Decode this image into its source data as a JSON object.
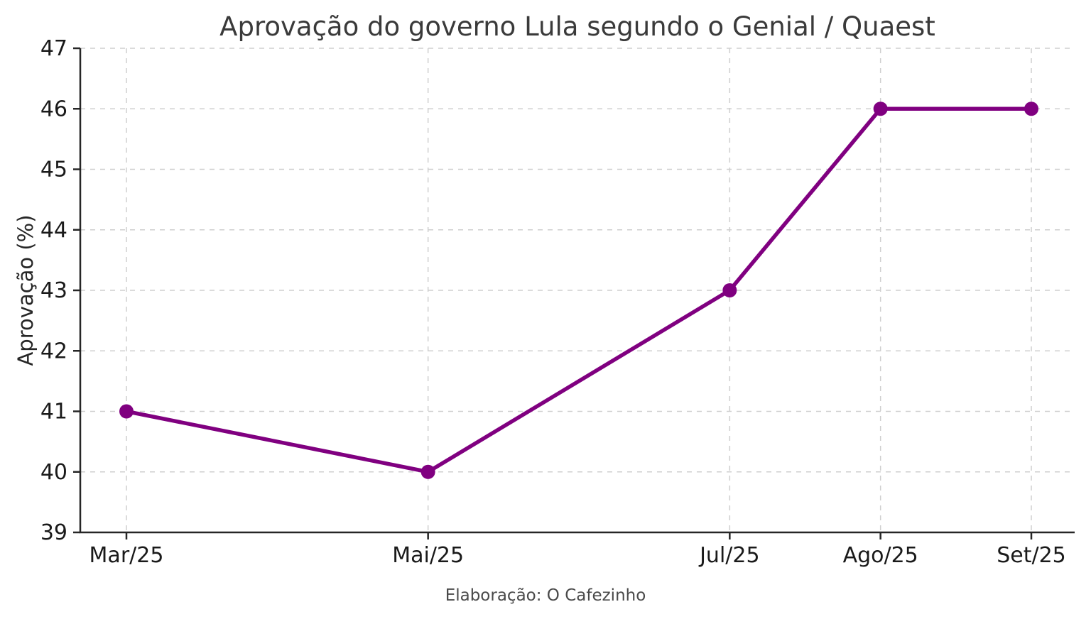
{
  "chart_data": {
    "type": "line",
    "title": "Aprovação do governo Lula segundo o Genial / Quaest",
    "xlabel": "",
    "ylabel": "Aprovação (%)",
    "caption": "Elaboração: O Cafezinho",
    "categories": [
      "Mar/25",
      "Mai/25",
      "Jul/25",
      "Ago/25",
      "Set/25"
    ],
    "month_positions": [
      0,
      2,
      4,
      5,
      6
    ],
    "series": [
      {
        "name": "Aprovação",
        "values": [
          41,
          40,
          43,
          46,
          46
        ]
      }
    ],
    "values": [
      41,
      40,
      43,
      46,
      46
    ],
    "ylim": [
      39,
      47
    ],
    "yticks": [
      39,
      40,
      41,
      42,
      43,
      44,
      45,
      46,
      47
    ],
    "grid": true,
    "legend": "none",
    "colors": {
      "line": "#800080",
      "marker": "#800080",
      "grid": "#cfcfcf",
      "axis": "#262626",
      "tick_label": "#1a1a1a",
      "title": "#3a3a3a",
      "caption": "#4a4a4a",
      "background": "#ffffff"
    }
  }
}
